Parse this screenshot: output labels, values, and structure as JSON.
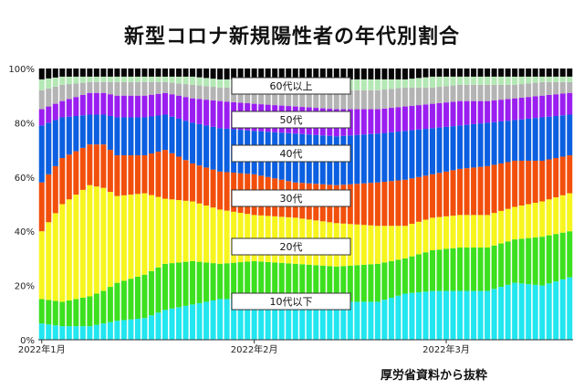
{
  "chart_data": {
    "type": "bar",
    "stacked": true,
    "percent": true,
    "title": "新型コロナ新規陽性者の年代別割合",
    "xlabel": "",
    "ylabel": "",
    "ylim": [
      0,
      100
    ],
    "y_ticks": [
      "0%",
      "20%",
      "40%",
      "60%",
      "80%",
      "100%"
    ],
    "x_ticks": [
      {
        "label": "2022年1月",
        "day": 1
      },
      {
        "label": "2022年2月",
        "day": 32
      },
      {
        "label": "2022年3月",
        "day": 60
      }
    ],
    "n_days": 78,
    "grid": false,
    "colors": {
      "10代以下": "#22e6f0",
      "20代": "#3ce01e",
      "30代": "#f7f51e",
      "40代": "#f24f0c",
      "50代": "#0b5fe0",
      "60代以上_a": "#9b1ef0",
      "60代以上_b": "#b4b4b4",
      "60代以上_c": "#b4e8b4",
      "60代以上_d": "#050505"
    },
    "boundaries_cumulative_percent": {
      "anchor_days": [
        1,
        4,
        8,
        10,
        12,
        16,
        19,
        23,
        27,
        32,
        38,
        44,
        50,
        54,
        58,
        62,
        66,
        70,
        74,
        78
      ],
      "b1": [
        6,
        5,
        5,
        6,
        7,
        8,
        11,
        13,
        15,
        15,
        15,
        14,
        14,
        17,
        18,
        18,
        18,
        21,
        20,
        23
      ],
      "b2": [
        15,
        14,
        16,
        18,
        21,
        24,
        28,
        29,
        28,
        29,
        28,
        27,
        28,
        30,
        33,
        34,
        34,
        37,
        38,
        40
      ],
      "b3": [
        40,
        50,
        57,
        56,
        53,
        54,
        52,
        51,
        48,
        46,
        45,
        43,
        42,
        42,
        45,
        46,
        46,
        49,
        51,
        54
      ],
      "b4": [
        58,
        67,
        72,
        72,
        68,
        68,
        70,
        65,
        62,
        61,
        58,
        57,
        58,
        59,
        61,
        63,
        64,
        66,
        66,
        68
      ],
      "b5": [
        79,
        82,
        83,
        83,
        82,
        82,
        83,
        80,
        78,
        77,
        76,
        75,
        76,
        77,
        78,
        79,
        80,
        81,
        82,
        83
      ],
      "b6": [
        85,
        88,
        91,
        91,
        90,
        90,
        91,
        89,
        88,
        87,
        86,
        85,
        85,
        86,
        87,
        88,
        88,
        89,
        90,
        91
      ],
      "b7": [
        92,
        94,
        95,
        95,
        95,
        95,
        95,
        94,
        93,
        93,
        92,
        92,
        92,
        93,
        93,
        94,
        94,
        94,
        95,
        95
      ],
      "b8": [
        96,
        97,
        97,
        97,
        97,
        97,
        97,
        97,
        96,
        96,
        96,
        96,
        96,
        96,
        97,
        97,
        97,
        97,
        97,
        97
      ]
    },
    "legend_labels": [
      "10代以下",
      "20代",
      "30代",
      "40代",
      "50代",
      "60代以上"
    ]
  },
  "source_note": "厚労省資料から抜粋"
}
